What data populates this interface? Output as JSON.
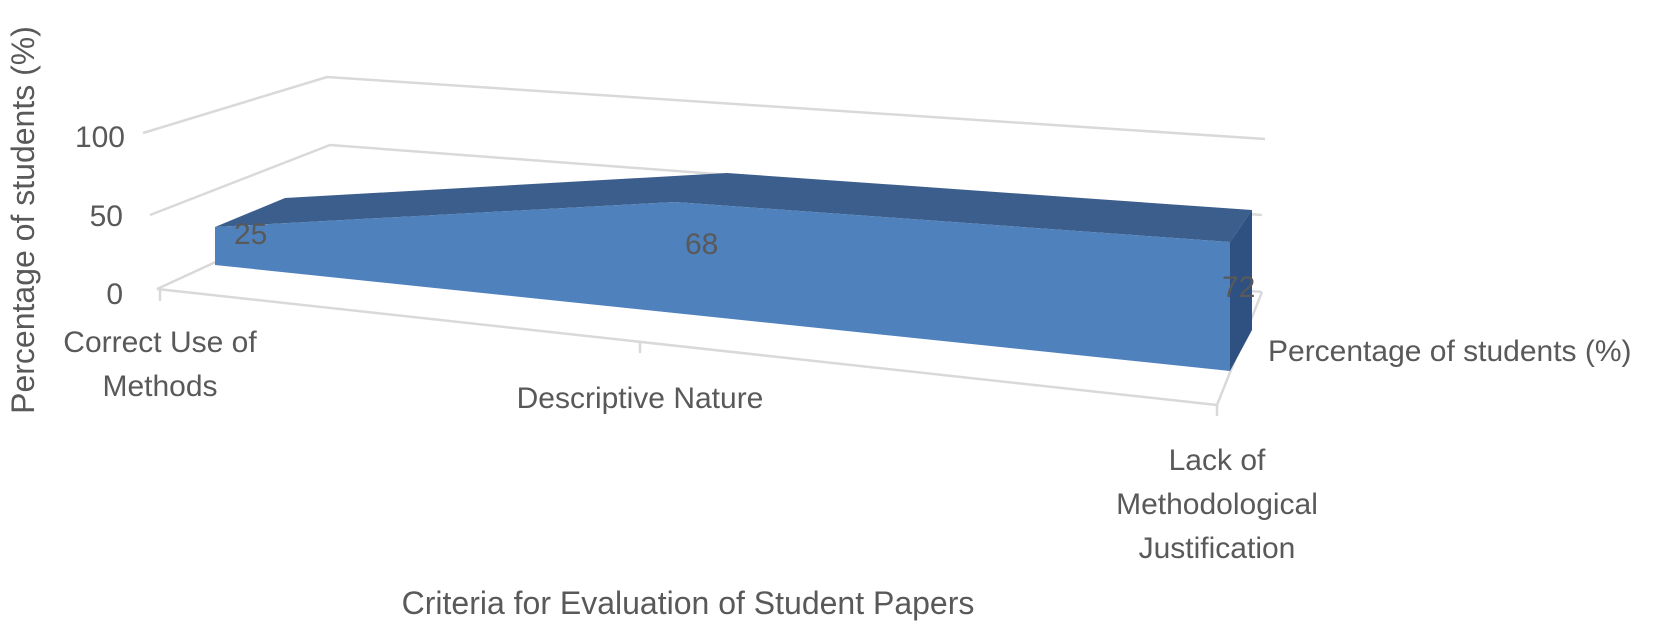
{
  "chart_data": {
    "type": "area",
    "categories": [
      "Correct Use of Methods",
      "Descriptive Nature",
      "Lack of Methodological Justification"
    ],
    "series": [
      {
        "name": "Percentage of students (%)",
        "values": [
          25,
          68,
          72
        ],
        "color": "#4f81bd"
      }
    ],
    "ylabel": "Percentage of students (%)",
    "xlabel": "Criteria for Evaluation of Student Papers",
    "y_ticks": [
      "0",
      "50",
      "100"
    ],
    "ylim": [
      0,
      100
    ],
    "grid": true,
    "projection": "3d"
  }
}
